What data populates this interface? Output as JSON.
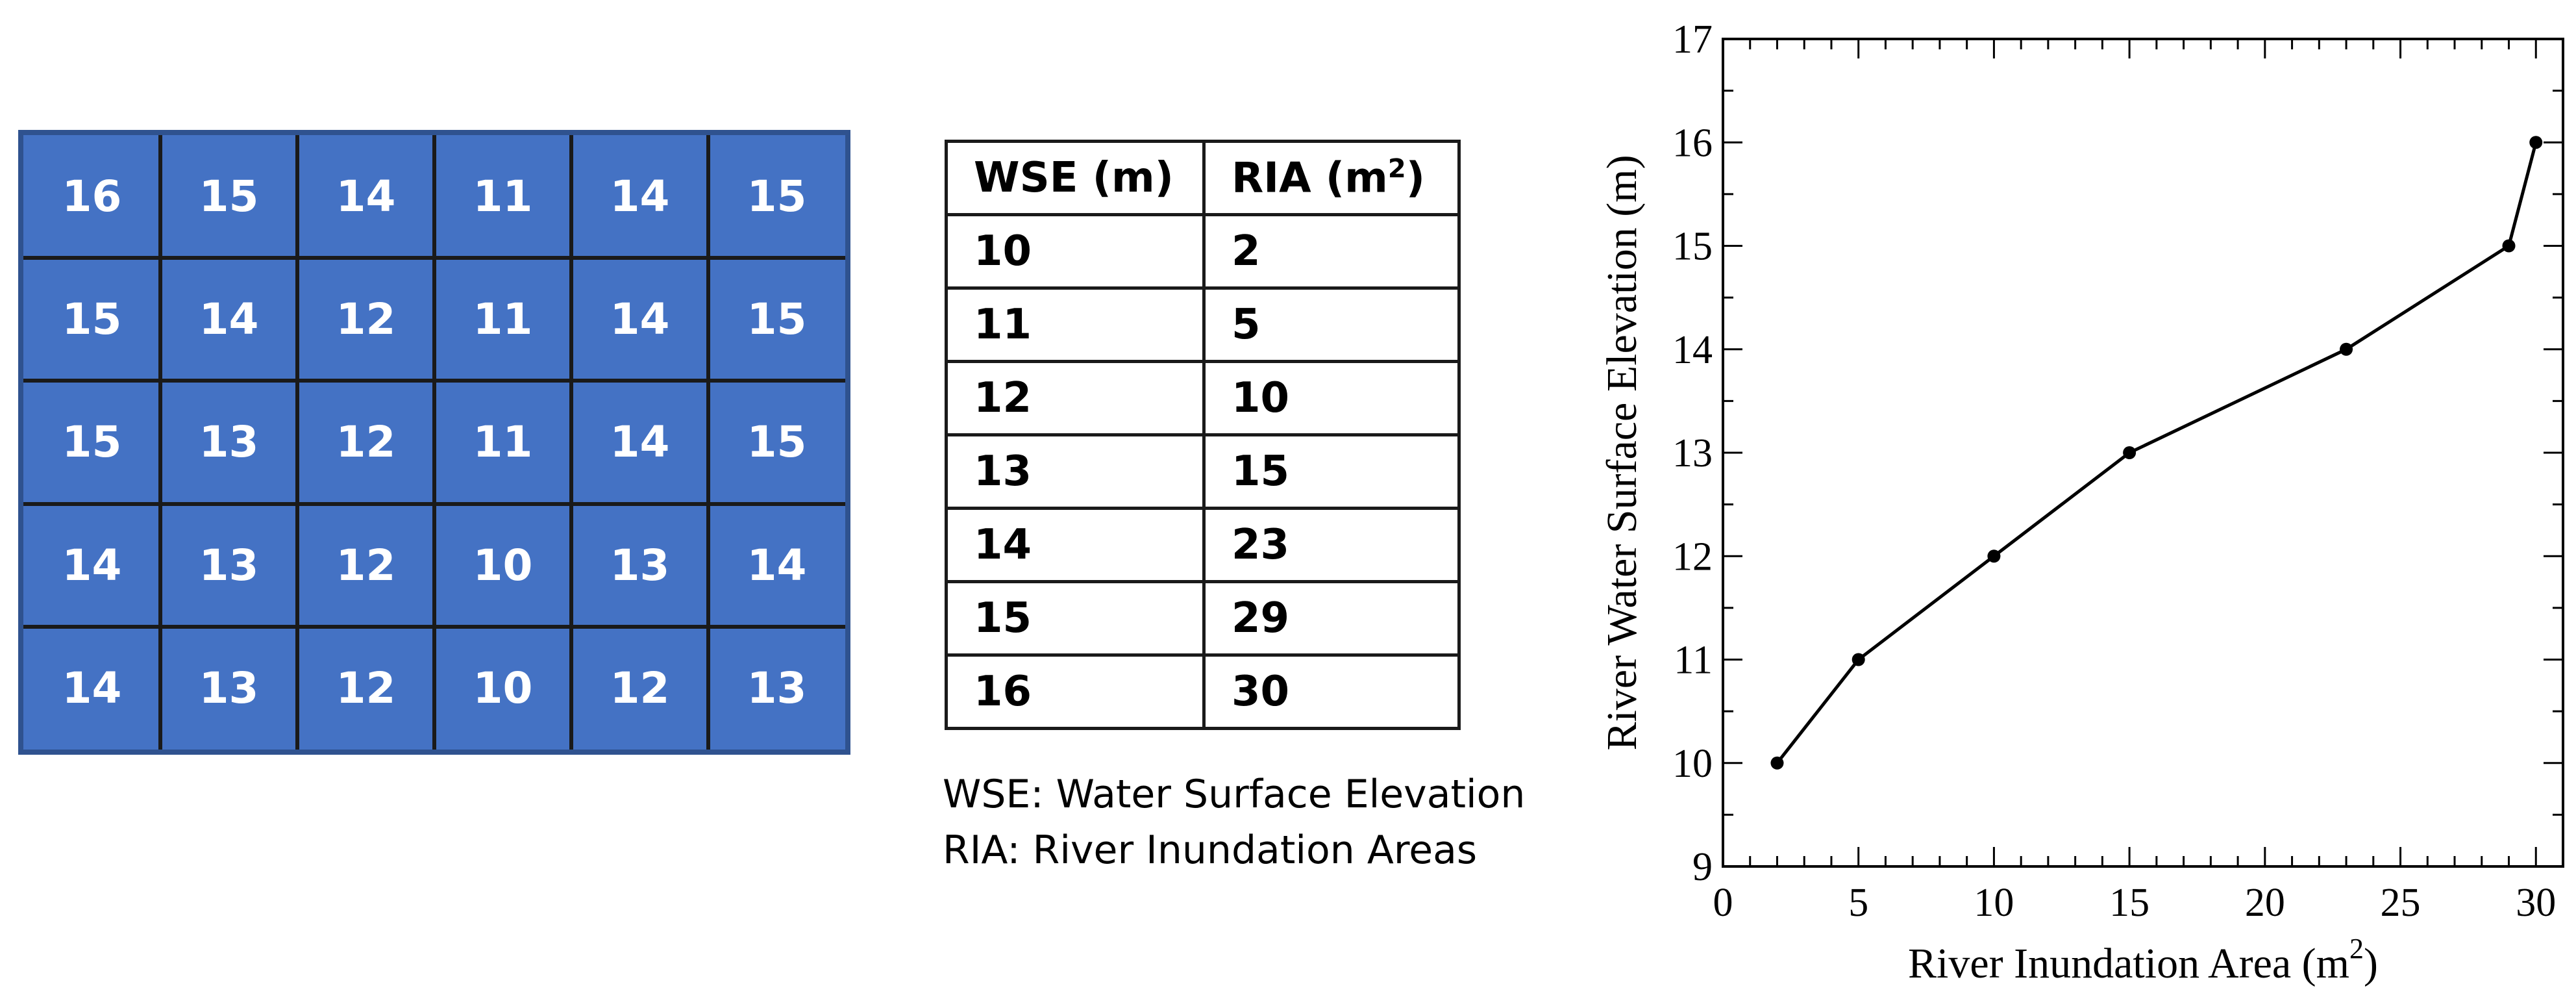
{
  "grid": {
    "rows": [
      [
        16,
        15,
        14,
        11,
        14,
        15
      ],
      [
        15,
        14,
        12,
        11,
        14,
        15
      ],
      [
        15,
        13,
        12,
        11,
        14,
        15
      ],
      [
        14,
        13,
        12,
        10,
        13,
        14
      ],
      [
        14,
        13,
        12,
        10,
        12,
        13
      ]
    ],
    "fill_color": "#4472c4",
    "text_color": "#ffffff"
  },
  "table": {
    "header": {
      "wse": "WSE (m)",
      "ria": "RIA (m",
      "ria_sup": "2",
      "ria_close": ")"
    },
    "rows": [
      {
        "wse": "10",
        "ria": "2"
      },
      {
        "wse": "11",
        "ria": "5"
      },
      {
        "wse": "12",
        "ria": "10"
      },
      {
        "wse": "13",
        "ria": "15"
      },
      {
        "wse": "14",
        "ria": "23"
      },
      {
        "wse": "15",
        "ria": "29"
      },
      {
        "wse": "16",
        "ria": "30"
      }
    ]
  },
  "legend": {
    "wse": "WSE: Water Surface Elevation",
    "ria": "RIA: River Inundation Areas"
  },
  "chart_data": {
    "type": "line",
    "x": [
      2,
      5,
      10,
      15,
      23,
      29,
      30
    ],
    "y": [
      10,
      11,
      12,
      13,
      14,
      15,
      16
    ],
    "xlabel": "River Inundation Area (m",
    "xlabel_sup": "2",
    "xlabel_close": ")",
    "ylabel": "River Water Surface Elevation (m)",
    "xlim": [
      0,
      31
    ],
    "ylim": [
      9,
      17
    ],
    "xticks": [
      0,
      5,
      10,
      15,
      20,
      25,
      30
    ],
    "yticks": [
      9,
      10,
      11,
      12,
      13,
      14,
      15,
      16,
      17
    ],
    "grid": false,
    "markers": true
  }
}
